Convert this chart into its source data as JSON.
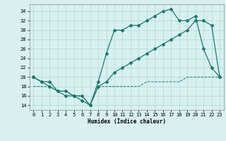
{
  "line1_x": [
    0,
    1,
    2,
    3,
    4,
    5,
    6,
    7,
    8,
    9,
    10,
    11,
    12,
    13,
    14,
    15,
    16,
    17,
    18,
    19,
    20,
    21,
    22,
    23
  ],
  "line1_y": [
    20,
    19,
    19,
    17,
    16,
    16,
    15,
    14,
    19,
    25,
    30,
    30,
    31,
    31,
    32,
    33,
    34,
    34.5,
    32,
    32,
    33,
    26,
    22,
    20
  ],
  "line2_x": [
    0,
    1,
    2,
    3,
    4,
    5,
    6,
    7,
    8,
    9,
    10,
    11,
    12,
    13,
    14,
    15,
    16,
    17,
    18,
    19,
    20,
    21,
    22,
    23
  ],
  "line2_y": [
    20,
    19,
    18,
    17,
    17,
    16,
    16,
    14,
    18,
    19,
    21,
    22,
    23,
    24,
    25,
    26,
    27,
    28,
    29,
    30,
    32,
    32,
    31,
    20
  ],
  "line3_x": [
    0,
    2,
    3,
    4,
    5,
    6,
    7,
    8,
    9,
    10,
    11,
    12,
    13,
    14,
    15,
    16,
    17,
    18,
    19,
    20,
    21,
    22,
    23
  ],
  "line3_y": [
    18,
    18,
    17,
    17,
    16,
    16,
    14,
    18,
    18,
    18,
    18,
    18,
    18,
    19,
    19,
    19,
    19,
    19,
    20,
    20,
    20,
    20,
    20
  ],
  "line_color": "#1a7a6a",
  "bg_color": "#d8f0f0",
  "grid_color": "#afd8d8",
  "xlabel": "Humidex (Indice chaleur)",
  "ylim": [
    13,
    35.5
  ],
  "xlim": [
    -0.5,
    23.5
  ],
  "yticks": [
    14,
    16,
    18,
    20,
    22,
    24,
    26,
    28,
    30,
    32,
    34
  ],
  "xticks": [
    0,
    1,
    2,
    3,
    4,
    5,
    6,
    7,
    8,
    9,
    10,
    11,
    12,
    13,
    14,
    15,
    16,
    17,
    18,
    19,
    20,
    21,
    22,
    23
  ]
}
